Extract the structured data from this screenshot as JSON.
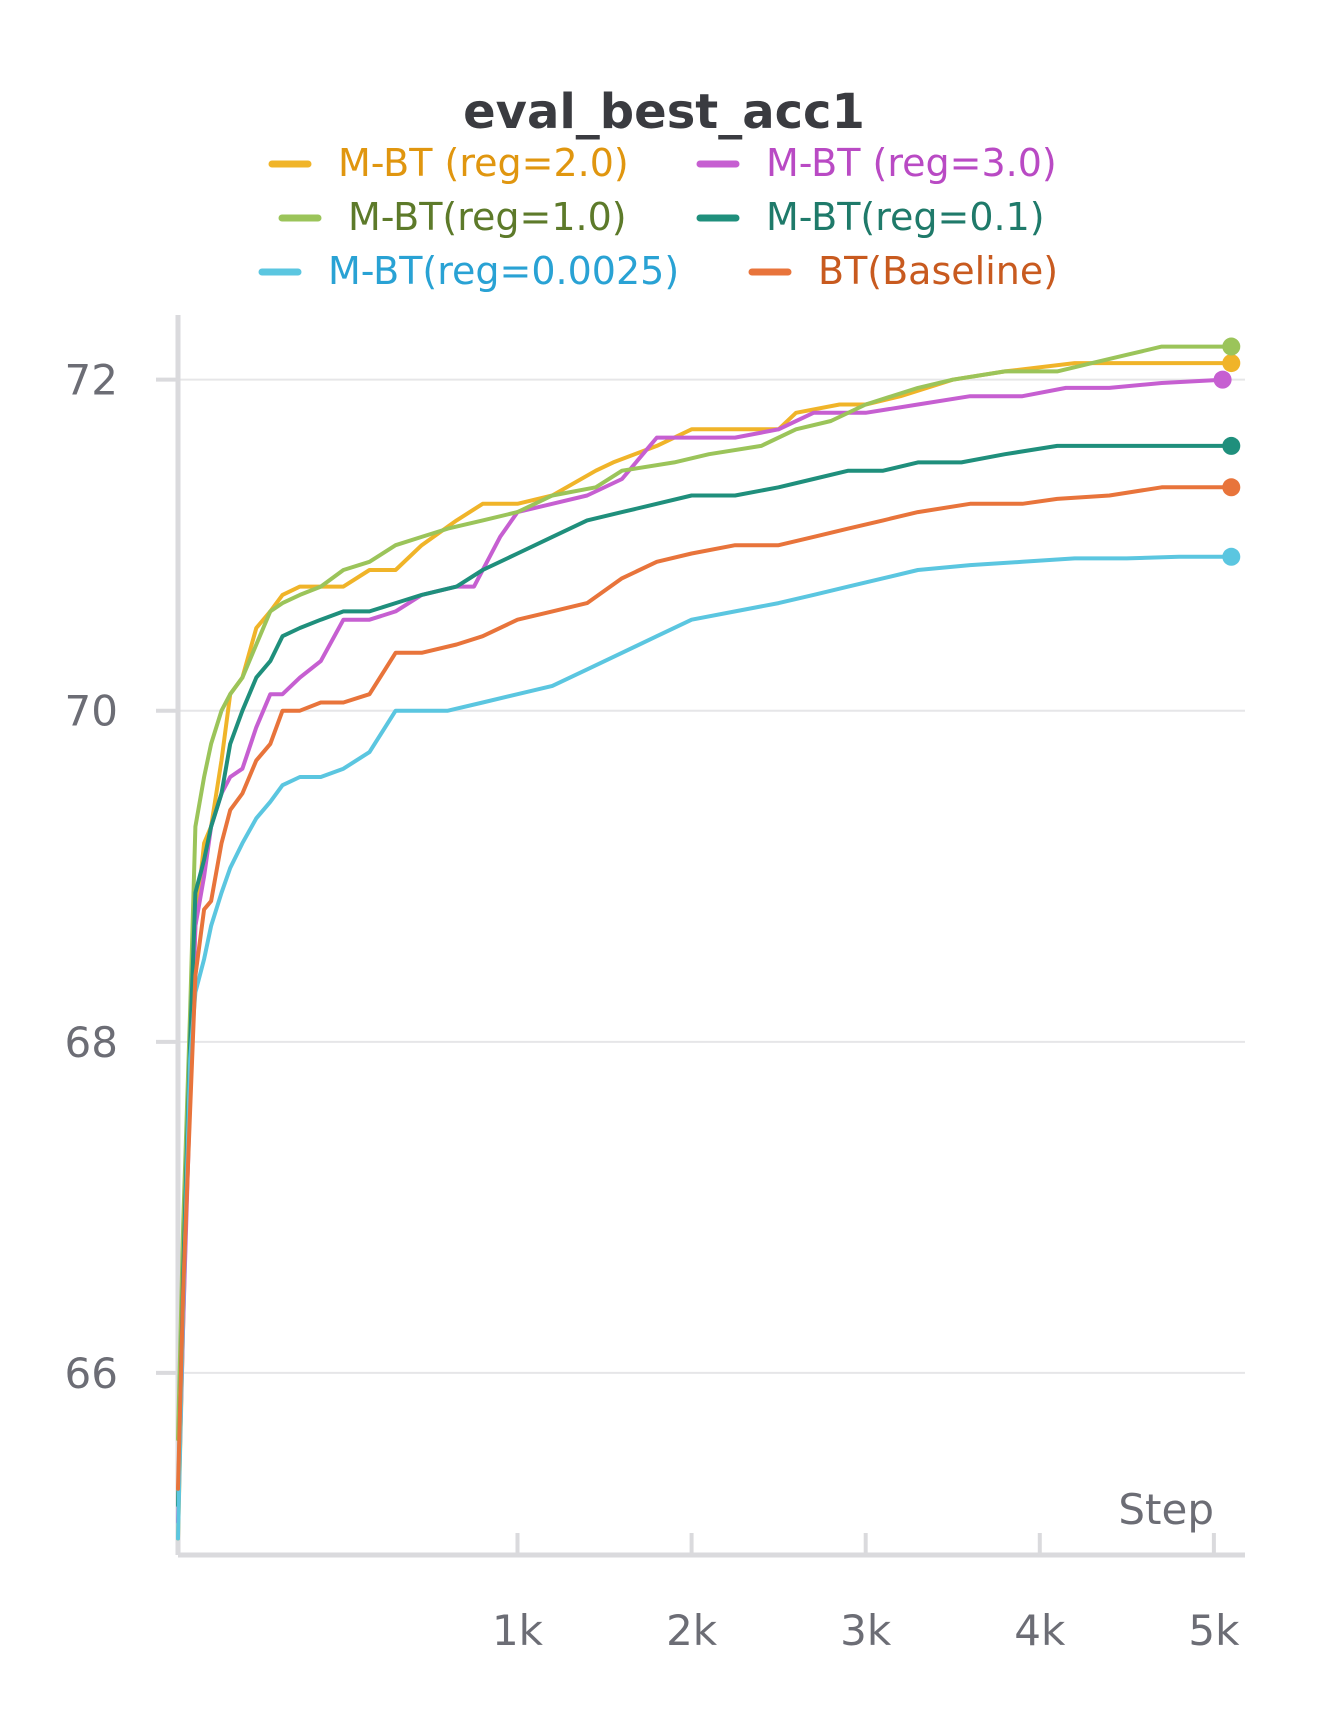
{
  "chart_data": {
    "type": "line",
    "title": "eval_best_acc1",
    "xlabel": "Step",
    "ylabel": "",
    "xlim": [
      -950,
      5150
    ],
    "ylim": [
      64.9,
      72.3
    ],
    "x_ticks": [
      {
        "value": 1000,
        "label": "1k"
      },
      {
        "value": 2000,
        "label": "2k"
      },
      {
        "value": 3000,
        "label": "3k"
      },
      {
        "value": 4000,
        "label": "4k"
      },
      {
        "value": 5000,
        "label": "5k"
      }
    ],
    "y_ticks": [
      {
        "value": 66,
        "label": "66"
      },
      {
        "value": 68,
        "label": "68"
      },
      {
        "value": 70,
        "label": "70"
      },
      {
        "value": 72,
        "label": "72"
      }
    ],
    "grid": true,
    "legend": "top-center",
    "series": [
      {
        "name": "M-BT (reg=2.0)",
        "color": "#f0b429",
        "text_color": "#e0960f",
        "x": [
          -950,
          -920,
          -880,
          -850,
          -800,
          -760,
          -700,
          -650,
          -580,
          -500,
          -420,
          -350,
          -250,
          -130,
          0,
          150,
          300,
          450,
          650,
          800,
          1000,
          1200,
          1450,
          1550,
          1800,
          2000,
          2250,
          2500,
          2600,
          2850,
          3000,
          3200,
          3500,
          3800,
          4200,
          4600,
          5000,
          5100
        ],
        "y": [
          65.0,
          66.3,
          67.9,
          68.7,
          69.2,
          69.3,
          69.7,
          70.1,
          70.2,
          70.5,
          70.6,
          70.7,
          70.75,
          70.75,
          70.75,
          70.85,
          70.85,
          71.0,
          71.15,
          71.25,
          71.25,
          71.3,
          71.45,
          71.5,
          71.6,
          71.7,
          71.7,
          71.7,
          71.8,
          71.85,
          71.85,
          71.9,
          72.0,
          72.05,
          72.1,
          72.1,
          72.1,
          72.1
        ]
      },
      {
        "name": "M-BT (reg=3.0)",
        "color": "#c65fd1",
        "text_color": "#b94ac4",
        "x": [
          -950,
          -920,
          -880,
          -850,
          -800,
          -760,
          -700,
          -650,
          -580,
          -500,
          -420,
          -350,
          -250,
          -130,
          0,
          150,
          300,
          450,
          650,
          750,
          900,
          1000,
          1200,
          1400,
          1600,
          1800,
          2000,
          2250,
          2500,
          2700,
          3000,
          3300,
          3600,
          3900,
          4150,
          4400,
          4700,
          5050
        ],
        "y": [
          65.1,
          66.3,
          67.7,
          68.7,
          69.0,
          69.3,
          69.5,
          69.6,
          69.65,
          69.9,
          70.1,
          70.1,
          70.2,
          70.3,
          70.55,
          70.55,
          70.6,
          70.7,
          70.75,
          70.75,
          71.05,
          71.2,
          71.25,
          71.3,
          71.4,
          71.65,
          71.65,
          71.65,
          71.7,
          71.8,
          71.8,
          71.85,
          71.9,
          71.9,
          71.95,
          71.95,
          71.98,
          72.0
        ]
      },
      {
        "name": "M-BT(reg=1.0)",
        "color": "#9bc45a",
        "text_color": "#5d7a2a",
        "x": [
          -950,
          -920,
          -880,
          -850,
          -800,
          -760,
          -700,
          -650,
          -580,
          -500,
          -420,
          -350,
          -250,
          -130,
          0,
          150,
          300,
          450,
          600,
          800,
          1000,
          1200,
          1450,
          1600,
          1900,
          2100,
          2400,
          2600,
          2800,
          3000,
          3300,
          3500,
          3800,
          4100,
          4300,
          4500,
          4700,
          5000,
          5100
        ],
        "y": [
          65.6,
          66.9,
          68.2,
          69.3,
          69.6,
          69.8,
          70.0,
          70.1,
          70.2,
          70.4,
          70.6,
          70.65,
          70.7,
          70.75,
          70.85,
          70.9,
          71.0,
          71.05,
          71.1,
          71.15,
          71.2,
          71.3,
          71.35,
          71.45,
          71.5,
          71.55,
          71.6,
          71.7,
          71.75,
          71.85,
          71.95,
          72.0,
          72.05,
          72.05,
          72.1,
          72.15,
          72.2,
          72.2,
          72.2
        ]
      },
      {
        "name": "M-BT(reg=0.1)",
        "color": "#1f8f7c",
        "text_color": "#1f7a6a",
        "x": [
          -950,
          -920,
          -880,
          -850,
          -800,
          -760,
          -700,
          -650,
          -580,
          -500,
          -420,
          -350,
          -250,
          -130,
          0,
          150,
          300,
          450,
          650,
          800,
          1000,
          1200,
          1400,
          1600,
          1800,
          2000,
          2250,
          2500,
          2700,
          2900,
          3100,
          3300,
          3550,
          3800,
          4100,
          4400,
          4700,
          5000,
          5100
        ],
        "y": [
          65.2,
          66.6,
          68.0,
          68.9,
          69.1,
          69.3,
          69.5,
          69.8,
          70.0,
          70.2,
          70.3,
          70.45,
          70.5,
          70.55,
          70.6,
          70.6,
          70.65,
          70.7,
          70.75,
          70.85,
          70.95,
          71.05,
          71.15,
          71.2,
          71.25,
          71.3,
          71.3,
          71.35,
          71.4,
          71.45,
          71.45,
          71.5,
          71.5,
          71.55,
          71.6,
          71.6,
          71.6,
          71.6,
          71.6
        ]
      },
      {
        "name": "M-BT(reg=0.0025)",
        "color": "#5bc6e0",
        "text_color": "#29a2d4",
        "x": [
          -950,
          -920,
          -880,
          -850,
          -800,
          -760,
          -700,
          -650,
          -580,
          -500,
          -420,
          -350,
          -250,
          -130,
          0,
          150,
          300,
          450,
          600,
          800,
          1000,
          1200,
          1400,
          1600,
          1800,
          2000,
          2250,
          2500,
          2700,
          2900,
          3100,
          3300,
          3600,
          3900,
          4200,
          4500,
          4800,
          5100
        ],
        "y": [
          65.0,
          66.4,
          67.9,
          68.3,
          68.5,
          68.7,
          68.9,
          69.05,
          69.2,
          69.35,
          69.45,
          69.55,
          69.6,
          69.6,
          69.65,
          69.75,
          70.0,
          70.0,
          70.0,
          70.05,
          70.1,
          70.15,
          70.25,
          70.35,
          70.45,
          70.55,
          70.6,
          70.65,
          70.7,
          70.75,
          70.8,
          70.85,
          70.88,
          70.9,
          70.92,
          70.92,
          70.93,
          70.93
        ]
      },
      {
        "name": "BT(Baseline)",
        "color": "#e8743b",
        "text_color": "#c85a1f",
        "x": [
          -950,
          -920,
          -880,
          -850,
          -800,
          -760,
          -700,
          -650,
          -580,
          -500,
          -420,
          -350,
          -250,
          -130,
          0,
          150,
          300,
          450,
          650,
          800,
          1000,
          1200,
          1400,
          1600,
          1800,
          2000,
          2250,
          2500,
          2700,
          2900,
          3100,
          3300,
          3600,
          3900,
          4100,
          4400,
          4700,
          5000,
          5100
        ],
        "y": [
          65.3,
          66.5,
          67.6,
          68.4,
          68.8,
          68.85,
          69.2,
          69.4,
          69.5,
          69.7,
          69.8,
          70.0,
          70.0,
          70.05,
          70.05,
          70.1,
          70.35,
          70.35,
          70.4,
          70.45,
          70.55,
          70.6,
          70.65,
          70.8,
          70.9,
          70.95,
          71.0,
          71.0,
          71.05,
          71.1,
          71.15,
          71.2,
          71.25,
          71.25,
          71.28,
          71.3,
          71.35,
          71.35,
          71.35
        ]
      }
    ]
  }
}
